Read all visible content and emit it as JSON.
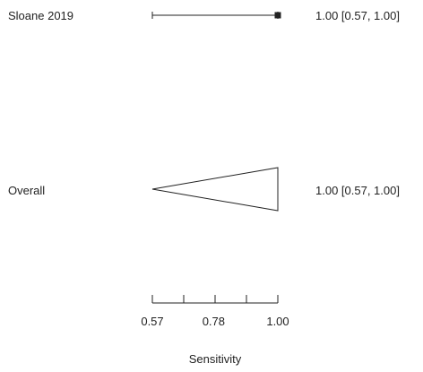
{
  "chart_data": {
    "type": "forest",
    "xlabel": "Sensitivity",
    "xlim": [
      0.57,
      1.0
    ],
    "x_ticks": [
      0.57,
      0.6775,
      0.785,
      0.8925,
      1.0
    ],
    "x_tick_labels": [
      {
        "value": 0.57,
        "label": "0.57"
      },
      {
        "value": 0.78,
        "label": "0.78"
      },
      {
        "value": 1.0,
        "label": "1.00"
      }
    ],
    "studies": [
      {
        "name": "Sloane 2019",
        "estimate": 1.0,
        "lower": 0.57,
        "upper": 1.0,
        "label": "1.00 [0.57, 1.00]"
      }
    ],
    "overall": {
      "name": "Overall",
      "estimate": 1.0,
      "lower": 0.57,
      "upper": 1.0,
      "label": "1.00 [0.57, 1.00]"
    },
    "colors": {
      "ink": "#222222",
      "background": "#ffffff"
    }
  }
}
